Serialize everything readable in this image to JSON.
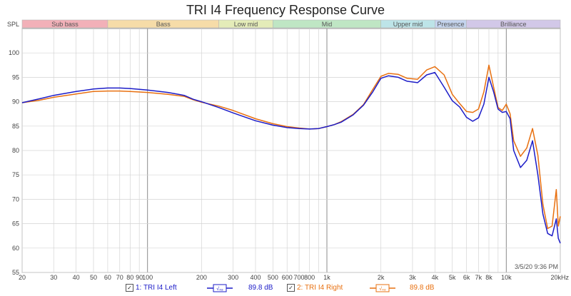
{
  "chart_data": {
    "type": "line",
    "title": "TRI I4 Frequency Response Curve",
    "ylabel": "SPL",
    "xunit_label": "20kHz",
    "xscale": "log",
    "xlim": [
      20,
      20000
    ],
    "ylim": [
      55,
      105
    ],
    "grid": true,
    "timestamp": "3/5/20 9:36 PM",
    "y_ticks": [
      55,
      60,
      65,
      70,
      75,
      80,
      85,
      90,
      95,
      100
    ],
    "x_ticks": [
      {
        "v": 20,
        "label": "20"
      },
      {
        "v": 30,
        "label": "30"
      },
      {
        "v": 40,
        "label": "40"
      },
      {
        "v": 50,
        "label": "50"
      },
      {
        "v": 60,
        "label": "60"
      },
      {
        "v": 70,
        "label": "70"
      },
      {
        "v": 80,
        "label": "80"
      },
      {
        "v": 90,
        "label": "90"
      },
      {
        "v": 100,
        "label": "100"
      },
      {
        "v": 200,
        "label": "200"
      },
      {
        "v": 300,
        "label": "300"
      },
      {
        "v": 400,
        "label": "400"
      },
      {
        "v": 500,
        "label": "500"
      },
      {
        "v": 600,
        "label": "600"
      },
      {
        "v": 700,
        "label": "700"
      },
      {
        "v": 800,
        "label": "800"
      },
      {
        "v": 1000,
        "label": "1k"
      },
      {
        "v": 2000,
        "label": "2k"
      },
      {
        "v": 3000,
        "label": "3k"
      },
      {
        "v": 4000,
        "label": "4k"
      },
      {
        "v": 5000,
        "label": "5k"
      },
      {
        "v": 6000,
        "label": "6k"
      },
      {
        "v": 7000,
        "label": "7k"
      },
      {
        "v": 8000,
        "label": "8k"
      },
      {
        "v": 10000,
        "label": "10k"
      }
    ],
    "bands": [
      {
        "name": "Sub bass",
        "from": 20,
        "to": 60,
        "color": "#f2b0b8"
      },
      {
        "name": "Bass",
        "from": 60,
        "to": 250,
        "color": "#f6dca8"
      },
      {
        "name": "Low mid",
        "from": 250,
        "to": 500,
        "color": "#e4ecb8"
      },
      {
        "name": "Mid",
        "from": 500,
        "to": 2000,
        "color": "#bfe6c4"
      },
      {
        "name": "Upper mid",
        "from": 2000,
        "to": 4000,
        "color": "#bde4e8"
      },
      {
        "name": "Presence",
        "from": 4000,
        "to": 6000,
        "color": "#c4d4ee"
      },
      {
        "name": "Brilliance",
        "from": 6000,
        "to": 20000,
        "color": "#d2c8e8"
      }
    ],
    "series": [
      {
        "name": "1: TRI I4 Left",
        "color": "#1c1cc8",
        "x": [
          20,
          25,
          30,
          40,
          50,
          60,
          70,
          80,
          100,
          130,
          160,
          180,
          200,
          250,
          300,
          400,
          500,
          600,
          700,
          800,
          900,
          1000,
          1100,
          1200,
          1400,
          1600,
          1800,
          2000,
          2200,
          2500,
          2800,
          3200,
          3600,
          4000,
          4500,
          5000,
          5500,
          6000,
          6500,
          7000,
          7500,
          8000,
          8500,
          9000,
          9500,
          10000,
          10500,
          11000,
          12000,
          13000,
          14000,
          15000,
          16000,
          17000,
          18000,
          19000,
          19500,
          20000
        ],
        "values": [
          89.8,
          90.6,
          91.3,
          92.1,
          92.6,
          92.8,
          92.8,
          92.7,
          92.4,
          91.9,
          91.3,
          90.5,
          90.0,
          88.8,
          87.7,
          86.1,
          85.2,
          84.7,
          84.5,
          84.4,
          84.5,
          84.9,
          85.3,
          85.8,
          87.3,
          89.3,
          92.0,
          94.8,
          95.3,
          95.0,
          94.2,
          93.9,
          95.5,
          96.0,
          93.0,
          90.2,
          88.9,
          86.8,
          86.0,
          86.7,
          89.5,
          95.0,
          92.0,
          88.5,
          87.8,
          88.0,
          86.5,
          80.0,
          76.5,
          78.0,
          82.0,
          75.0,
          67.0,
          63.0,
          62.5,
          66.0,
          62.0,
          61.0
        ]
      },
      {
        "name": "2: TRI I4 Right",
        "color": "#e87010",
        "x": [
          20,
          25,
          30,
          40,
          50,
          60,
          70,
          80,
          100,
          130,
          160,
          180,
          200,
          250,
          300,
          400,
          500,
          600,
          700,
          800,
          900,
          1000,
          1100,
          1200,
          1400,
          1600,
          1800,
          2000,
          2200,
          2500,
          2800,
          3200,
          3600,
          4000,
          4500,
          5000,
          5500,
          6000,
          6500,
          7000,
          7500,
          8000,
          8500,
          9000,
          9500,
          10000,
          10500,
          11000,
          12000,
          13000,
          14000,
          15000,
          16000,
          17000,
          18000,
          19000,
          19500,
          20000
        ],
        "values": [
          89.8,
          90.3,
          90.9,
          91.6,
          92.1,
          92.2,
          92.2,
          92.1,
          91.9,
          91.5,
          91.1,
          90.4,
          89.9,
          89.1,
          88.2,
          86.5,
          85.5,
          84.9,
          84.6,
          84.4,
          84.5,
          84.9,
          85.3,
          85.9,
          87.4,
          89.4,
          92.5,
          95.2,
          95.8,
          95.6,
          94.8,
          94.6,
          96.5,
          97.2,
          95.5,
          91.5,
          89.6,
          88.0,
          87.8,
          88.5,
          92.0,
          97.5,
          93.0,
          88.8,
          88.2,
          89.5,
          87.5,
          82.0,
          78.8,
          80.5,
          84.5,
          79.0,
          69.0,
          64.0,
          64.5,
          72.0,
          64.5,
          66.5
        ]
      }
    ],
    "legend": [
      {
        "checked": "✓",
        "label": "1: TRI I4 Left",
        "value": "89.8 dB",
        "color": "#1c1cc8",
        "icon": "eq-curve-icon"
      },
      {
        "checked": "✓",
        "label": "2: TRI I4 Right",
        "value": "89.8 dB",
        "color": "#e87010",
        "icon": "eq-curve-icon"
      }
    ]
  }
}
